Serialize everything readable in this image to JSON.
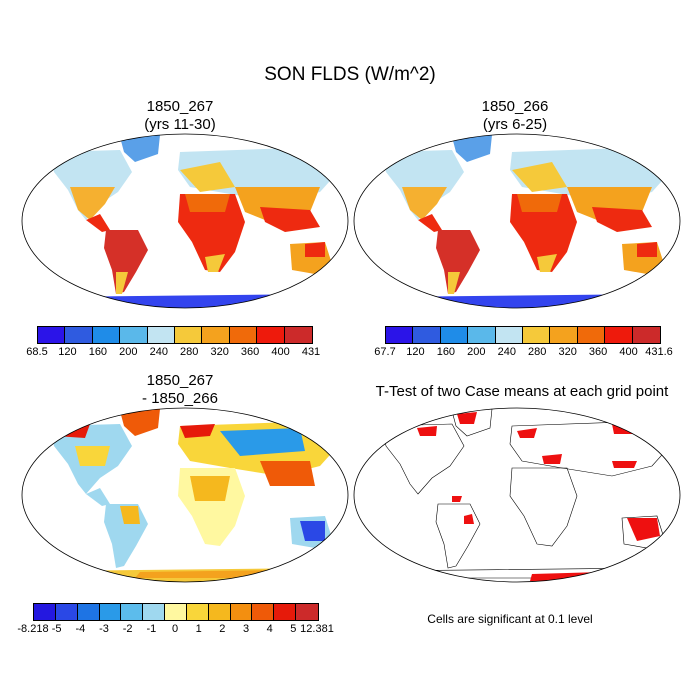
{
  "title": "SON FLDS (W/m^2)",
  "panels": {
    "top_left": {
      "title1": "1850_267",
      "title2": "(yrs 11-30)"
    },
    "top_right": {
      "title1": "1850_266",
      "title2": "(yrs 6-25)"
    },
    "bottom_left": {
      "title1": "1850_267",
      "title2": "- 1850_266"
    },
    "bottom_right": {
      "title": "T-Test of two Case means at each grid point"
    }
  },
  "colorbars": {
    "abs_left": {
      "labels": [
        "68.5",
        "120",
        "160",
        "200",
        "240",
        "280",
        "320",
        "360",
        "400",
        "431"
      ],
      "colors": [
        "#2b14e8",
        "#2f5be0",
        "#1f8ce8",
        "#5ab8ea",
        "#c2e4f2",
        "#f5c93a",
        "#f4a21e",
        "#f06a0a",
        "#ee1a0c",
        "#cc2a2a"
      ]
    },
    "abs_right": {
      "labels": [
        "67.7",
        "120",
        "160",
        "200",
        "240",
        "280",
        "320",
        "360",
        "400",
        "431.6"
      ],
      "colors": [
        "#2b14e8",
        "#2f5be0",
        "#1f8ce8",
        "#5ab8ea",
        "#c2e4f2",
        "#f5c93a",
        "#f4a21e",
        "#f06a0a",
        "#ee1a0c",
        "#cc2a2a"
      ]
    },
    "diff": {
      "labels": [
        "-8.218",
        "-5",
        "-4",
        "-3",
        "-2",
        "-1",
        "0",
        "1",
        "2",
        "3",
        "4",
        "5",
        "12.381"
      ],
      "colors": [
        "#2418e0",
        "#2a48e6",
        "#1e74e4",
        "#2a9ae8",
        "#5cbcec",
        "#9fd8ef",
        "#fff8a0",
        "#f9d63a",
        "#f5b81e",
        "#f38f10",
        "#ef5a08",
        "#e61a0a",
        "#cc2a2a"
      ]
    }
  },
  "note": "Cells are significant at 0.1 level"
}
